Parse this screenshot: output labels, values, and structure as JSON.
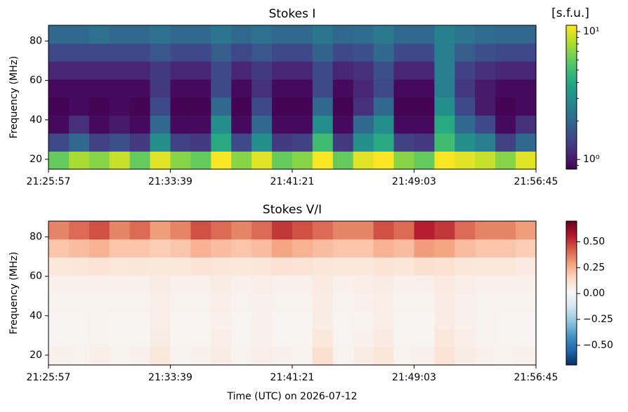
{
  "chart_data": [
    {
      "type": "heatmap",
      "title": "Stokes I",
      "ylabel": "Frequency (MHz)",
      "ylim": [
        15,
        88
      ],
      "yticks": [
        20,
        40,
        60,
        80
      ],
      "xlim": [
        "21:25:57",
        "21:56:45"
      ],
      "xticks": [
        "21:25:57",
        "21:33:39",
        "21:41:21",
        "21:49:03",
        "21:56:45"
      ],
      "colormap": "viridis",
      "color_scale": "log",
      "clim": [
        0.84,
        11.2
      ],
      "cticks": [
        {
          "value": 1,
          "label": "10⁰"
        },
        {
          "value": 10,
          "label": "10¹"
        }
      ],
      "colorbar_label": "[s.f.u.]",
      "z": [
        [
          6,
          8,
          7,
          9,
          6,
          10,
          7,
          6,
          11,
          7,
          10,
          6,
          7,
          11,
          6,
          10,
          11,
          7,
          6,
          11,
          10,
          9,
          7,
          10
        ],
        [
          1.5,
          2,
          1.4,
          1.6,
          1.3,
          3,
          1.4,
          1.3,
          4,
          1.5,
          3,
          1.3,
          1.4,
          5,
          1.3,
          3,
          4,
          1.4,
          1.3,
          5,
          3,
          2.5,
          1.4,
          2
        ],
        [
          0.9,
          1.2,
          0.9,
          1,
          0.9,
          2,
          0.9,
          0.9,
          3,
          0.9,
          2,
          0.9,
          0.9,
          3,
          0.9,
          2,
          3,
          0.9,
          0.9,
          4,
          2,
          1.5,
          0.9,
          1.2
        ],
        [
          0.85,
          0.9,
          0.85,
          0.9,
          0.85,
          1.5,
          0.85,
          0.85,
          2,
          0.85,
          1.5,
          0.85,
          0.85,
          2,
          0.85,
          1.2,
          2,
          0.85,
          0.85,
          3,
          1.5,
          1,
          0.85,
          0.9
        ],
        [
          0.9,
          0.9,
          0.9,
          0.9,
          0.9,
          1.3,
          0.9,
          0.9,
          1.5,
          0.9,
          1.2,
          0.9,
          0.9,
          1.5,
          0.9,
          1.1,
          1.5,
          0.9,
          0.9,
          2.5,
          1.3,
          1,
          0.9,
          0.9
        ],
        [
          1.1,
          1.1,
          1.1,
          1.1,
          1.1,
          1.3,
          1.1,
          1.1,
          1.5,
          1.1,
          1.3,
          1.1,
          1.1,
          1.5,
          1.1,
          1.2,
          1.6,
          1.1,
          1.1,
          2.5,
          1.4,
          1.2,
          1.1,
          1.1
        ],
        [
          1.5,
          1.5,
          1.5,
          1.5,
          1.5,
          1.7,
          1.5,
          1.5,
          1.8,
          1.5,
          1.7,
          1.5,
          1.5,
          1.9,
          1.5,
          1.6,
          2,
          1.5,
          1.5,
          2.5,
          1.8,
          1.6,
          1.5,
          1.5
        ],
        [
          2,
          2,
          2.2,
          2,
          2,
          2.2,
          2,
          2,
          2.3,
          2,
          2.2,
          2,
          2,
          2.3,
          2,
          2.1,
          2.4,
          2,
          2,
          2.6,
          2.3,
          2.1,
          2,
          2
        ]
      ]
    },
    {
      "type": "heatmap",
      "title": "Stokes V/I",
      "ylabel": "Frequency (MHz)",
      "xlabel": "Time (UTC) on 2026-07-12",
      "ylim": [
        15,
        88
      ],
      "yticks": [
        20,
        40,
        60,
        80
      ],
      "xlim": [
        "21:25:57",
        "21:56:45"
      ],
      "xticks": [
        "21:25:57",
        "21:33:39",
        "21:41:21",
        "21:49:03",
        "21:56:45"
      ],
      "colormap": "RdBu_r",
      "color_scale": "linear",
      "clim": [
        -0.69,
        0.7
      ],
      "cticks": [
        {
          "value": -0.5,
          "label": "−0.50"
        },
        {
          "value": -0.25,
          "label": "−0.25"
        },
        {
          "value": 0,
          "label": "0.00"
        },
        {
          "value": 0.25,
          "label": "0.25"
        },
        {
          "value": 0.5,
          "label": "0.50"
        }
      ],
      "z": [
        [
          0.04,
          0.03,
          0.05,
          0.03,
          0.04,
          0.08,
          0.03,
          0.04,
          0.06,
          0.03,
          0.05,
          0.04,
          0.03,
          0.12,
          0.03,
          0.06,
          0.09,
          0.03,
          0.04,
          0.1,
          0.06,
          0.04,
          0.03,
          0.04
        ],
        [
          0.02,
          0.02,
          0.03,
          0.02,
          0.02,
          0.06,
          0.02,
          0.02,
          0.05,
          0.02,
          0.04,
          0.02,
          0.02,
          0.08,
          0.02,
          0.04,
          0.07,
          0.02,
          0.02,
          0.08,
          0.05,
          0.03,
          0.02,
          0.02
        ],
        [
          0.02,
          0.02,
          0.03,
          0.02,
          0.02,
          0.05,
          0.02,
          0.02,
          0.04,
          0.02,
          0.04,
          0.02,
          0.02,
          0.06,
          0.02,
          0.03,
          0.05,
          0.02,
          0.02,
          0.06,
          0.04,
          0.03,
          0.02,
          0.02
        ],
        [
          0.03,
          0.03,
          0.03,
          0.03,
          0.03,
          0.05,
          0.03,
          0.03,
          0.05,
          0.03,
          0.04,
          0.03,
          0.03,
          0.06,
          0.03,
          0.04,
          0.05,
          0.03,
          0.03,
          0.06,
          0.04,
          0.03,
          0.03,
          0.03
        ],
        [
          0.04,
          0.04,
          0.04,
          0.04,
          0.04,
          0.06,
          0.04,
          0.04,
          0.06,
          0.04,
          0.05,
          0.04,
          0.04,
          0.07,
          0.04,
          0.05,
          0.06,
          0.04,
          0.04,
          0.07,
          0.05,
          0.04,
          0.04,
          0.04
        ],
        [
          0.08,
          0.09,
          0.1,
          0.08,
          0.09,
          0.08,
          0.08,
          0.1,
          0.09,
          0.08,
          0.09,
          0.11,
          0.1,
          0.09,
          0.08,
          0.08,
          0.1,
          0.09,
          0.12,
          0.11,
          0.09,
          0.08,
          0.08,
          0.07
        ],
        [
          0.2,
          0.22,
          0.25,
          0.2,
          0.2,
          0.18,
          0.2,
          0.25,
          0.22,
          0.2,
          0.22,
          0.28,
          0.25,
          0.22,
          0.2,
          0.2,
          0.25,
          0.22,
          0.3,
          0.28,
          0.22,
          0.2,
          0.2,
          0.18
        ],
        [
          0.35,
          0.4,
          0.45,
          0.35,
          0.4,
          0.3,
          0.35,
          0.45,
          0.4,
          0.35,
          0.4,
          0.5,
          0.45,
          0.4,
          0.35,
          0.35,
          0.45,
          0.4,
          0.55,
          0.5,
          0.4,
          0.35,
          0.35,
          0.3
        ]
      ]
    }
  ]
}
